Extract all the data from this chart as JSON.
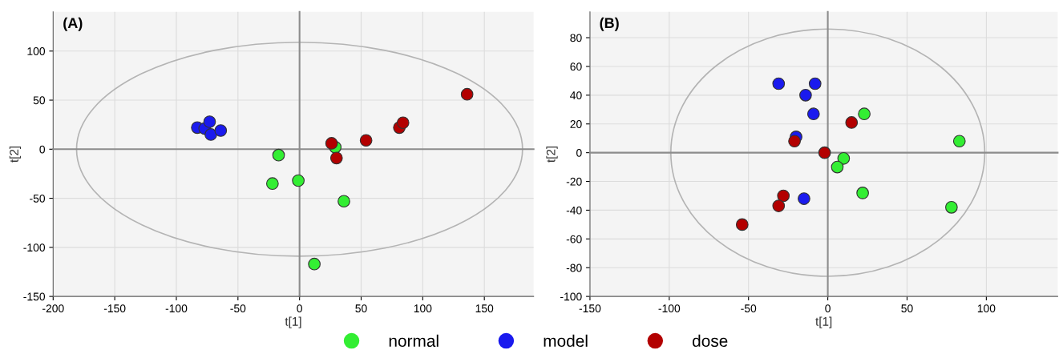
{
  "chart_data": [
    {
      "type": "scatter",
      "title": "(A)",
      "xlabel": "t[1]",
      "ylabel": "t[2]",
      "xlim": [
        -200,
        190
      ],
      "ylim": [
        -150,
        140
      ],
      "xticks": [
        -200,
        -150,
        -100,
        -50,
        0,
        50,
        100,
        150
      ],
      "yticks": [
        -150,
        -100,
        -50,
        0,
        50,
        100
      ],
      "grid": true,
      "legend": "bottom",
      "marker": "circle",
      "series": [
        {
          "name": "normal",
          "color": "#33ee33",
          "x": [
            -17,
            -22,
            -1,
            29,
            36,
            12
          ],
          "values": [
            -6,
            -35,
            -32,
            2,
            -53,
            -117
          ]
        },
        {
          "name": "model",
          "color": "#1a1aee",
          "x": [
            -83,
            -77,
            -73,
            -72,
            -64
          ],
          "values": [
            22,
            21,
            28,
            15,
            19
          ]
        },
        {
          "name": "dose",
          "color": "#b30000",
          "x": [
            26,
            30,
            54,
            81,
            84,
            136
          ],
          "values": [
            6,
            -9,
            9,
            22,
            27,
            56
          ]
        }
      ]
    },
    {
      "type": "scatter",
      "title": "(B)",
      "xlabel": "t[1]",
      "ylabel": "t[2]",
      "xlim": [
        -150,
        145
      ],
      "ylim": [
        -100,
        98
      ],
      "xticks": [
        -150,
        -100,
        -50,
        0,
        50,
        100
      ],
      "yticks": [
        -100,
        -80,
        -60,
        -40,
        -20,
        0,
        20,
        40,
        60,
        80
      ],
      "grid": true,
      "legend": "bottom",
      "marker": "circle",
      "series": [
        {
          "name": "normal",
          "color": "#33ee33",
          "x": [
            23,
            83,
            10,
            6,
            22,
            78
          ],
          "values": [
            27,
            8,
            -4,
            -10,
            -28,
            -38
          ]
        },
        {
          "name": "model",
          "color": "#1a1aee",
          "x": [
            -31,
            -8,
            -14,
            -9,
            -20,
            -15
          ],
          "values": [
            48,
            48,
            40,
            27,
            11,
            -32
          ]
        },
        {
          "name": "dose",
          "color": "#b30000",
          "x": [
            -21,
            -2,
            15,
            -28,
            -31,
            -54
          ],
          "values": [
            8,
            0,
            21,
            -30,
            -37,
            -50
          ]
        }
      ]
    }
  ]
}
